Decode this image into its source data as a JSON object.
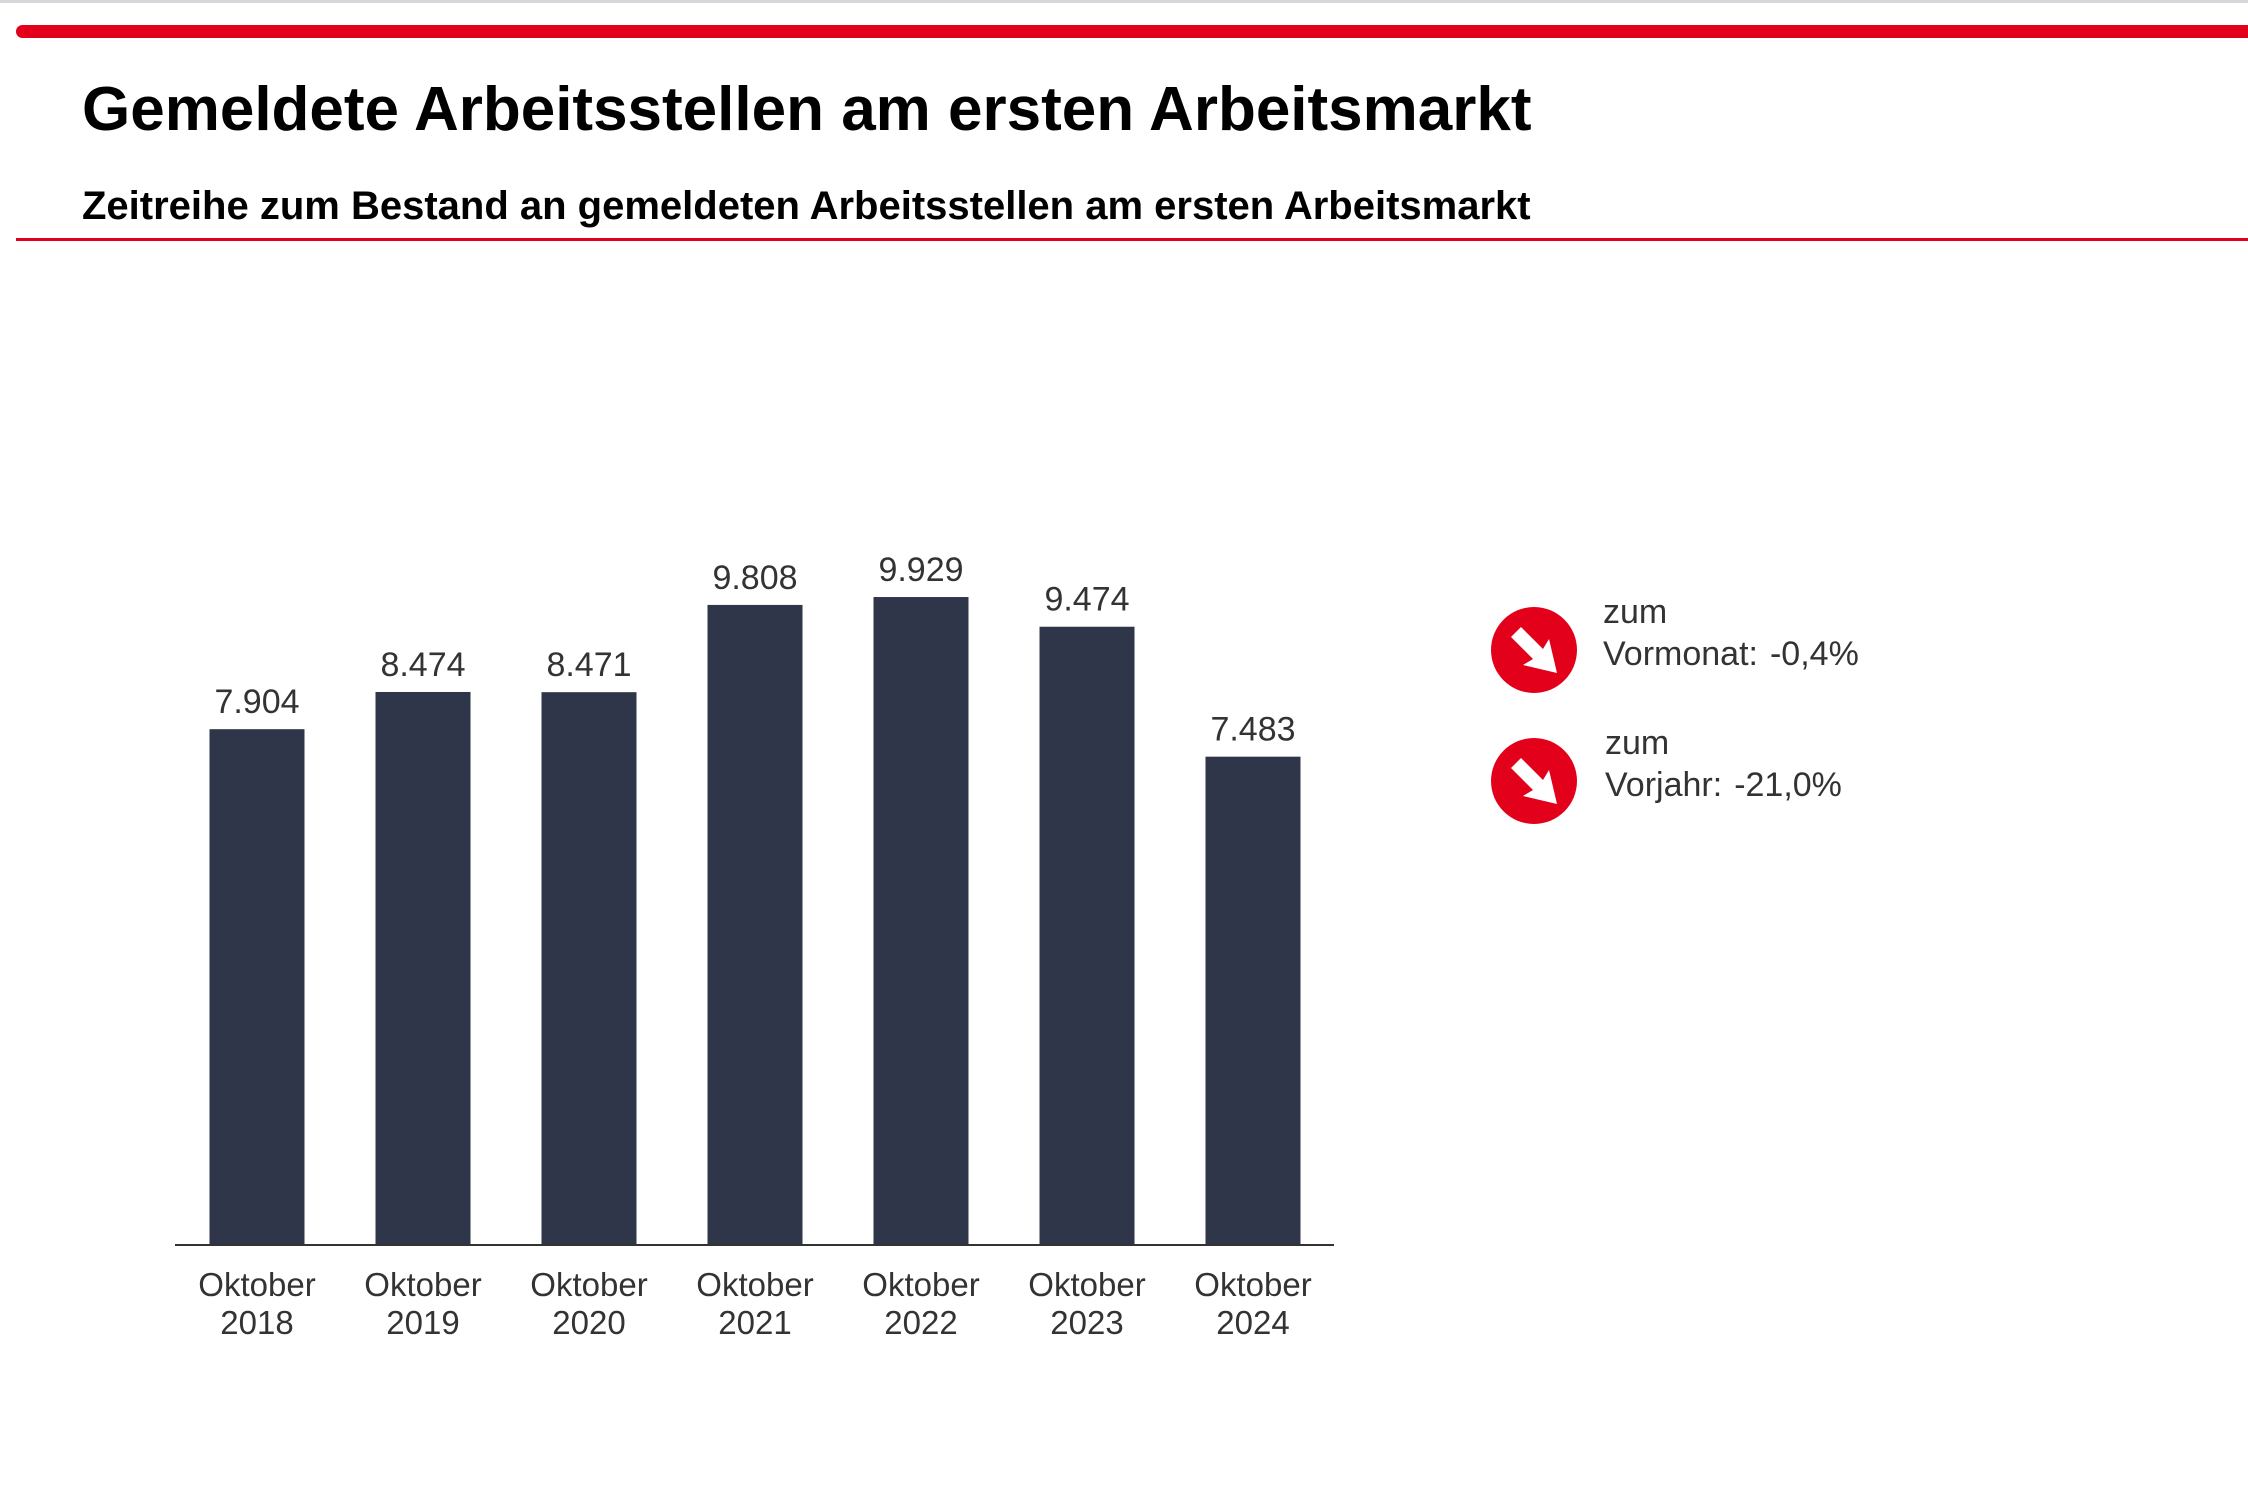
{
  "header": {
    "title": "Gemeldete Arbeitsstellen am ersten Arbeitsmarkt",
    "subtitle": "Zeitreihe zum Bestand an gemeldeten Arbeitsstellen am ersten Arbeitsmarkt"
  },
  "colors": {
    "accent": "#e2001a",
    "bar": "#2f3649",
    "text": "#333333"
  },
  "chart_data": {
    "type": "bar",
    "categories": [
      [
        "Oktober",
        "2018"
      ],
      [
        "Oktober",
        "2019"
      ],
      [
        "Oktober",
        "2020"
      ],
      [
        "Oktober",
        "2021"
      ],
      [
        "Oktober",
        "2022"
      ],
      [
        "Oktober",
        "2023"
      ],
      [
        "Oktober",
        "2024"
      ]
    ],
    "values": [
      7904,
      8474,
      8471,
      9808,
      9929,
      9474,
      7483
    ],
    "data_labels": [
      "7.904",
      "8.474",
      "8.471",
      "9.808",
      "9.929",
      "9.474",
      "7.483"
    ],
    "ylim": [
      0,
      10000
    ],
    "grid": false,
    "xlabel": "",
    "ylabel": ""
  },
  "legend": {
    "items": [
      {
        "icon": "arrow-down-right-icon",
        "line1": "zum",
        "label": "Vormonat:",
        "value": "-0,4%"
      },
      {
        "icon": "arrow-down-right-icon",
        "line1": "zum",
        "label": "Vorjahr:",
        "value": "-21,0%"
      }
    ]
  }
}
